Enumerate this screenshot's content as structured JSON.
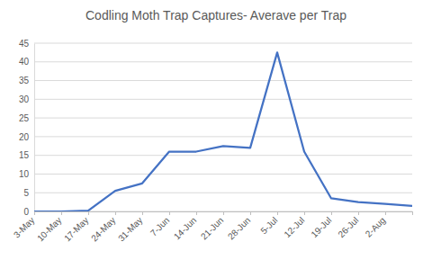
{
  "chart_data": {
    "type": "line",
    "title": "Codling Moth Trap Captures- Averave per Trap",
    "categories": [
      "3-May",
      "10-May",
      "17-May",
      "24-May",
      "31-May",
      "7-Jun",
      "14-Jun",
      "21-Jun",
      "28-Jun",
      "5-Jul",
      "12-Jul",
      "19-Jul",
      "26-Jul",
      "2-Aug",
      null
    ],
    "values": [
      0,
      0,
      0.2,
      5.5,
      7.5,
      16,
      16,
      17.5,
      17,
      42.5,
      16,
      3.5,
      2.5,
      2,
      1.5
    ],
    "color": "#4472c4",
    "ylim": [
      0,
      45
    ],
    "yticks": [
      0,
      5,
      10,
      15,
      20,
      25,
      30,
      35,
      40,
      45
    ],
    "grid": true
  }
}
